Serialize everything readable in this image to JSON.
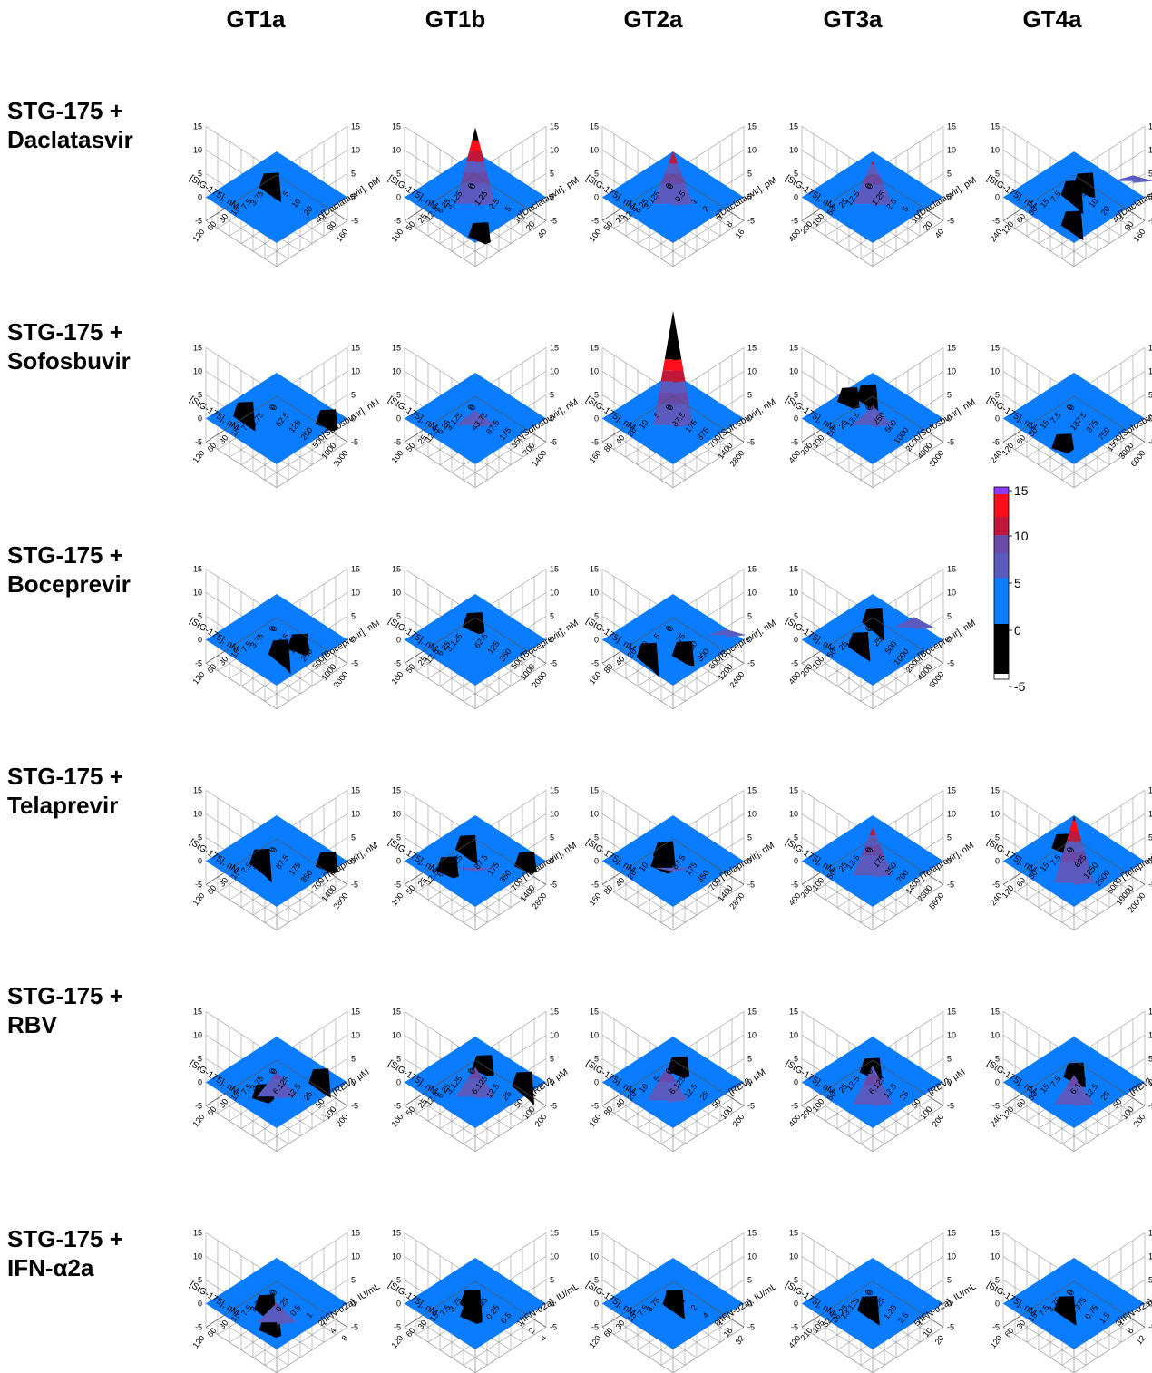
{
  "figure": {
    "column_headers": [
      "GT1a",
      "GT1b",
      "GT2a",
      "GT3a",
      "GT4a"
    ],
    "row_headers": [
      [
        "STG-175 +",
        "Daclatasvir"
      ],
      [
        "STG-175 +",
        "Sofosbuvir"
      ],
      [
        "STG-175 +",
        "Boceprevir"
      ],
      [
        "STG-175 +",
        "Telaprevir"
      ],
      [
        "STG-175 +",
        "RBV"
      ],
      [
        "STG-175 +",
        "IFN-α2a"
      ]
    ]
  },
  "colors": {
    "below_minus5": "#ffffff",
    "minus5_to_0": "#000000",
    "0_to_5": "#0a7cff",
    "5_to_10": "#5b5bbf",
    "10_to_15": "#ff0d1a",
    "above_15": "#8c3cff",
    "band_7": "#6a4aa8",
    "band_12": "#c0183a"
  },
  "chart_data": {
    "type": "surface-3d",
    "zlim": [
      -5,
      15
    ],
    "z_ticks": [
      "15",
      "10",
      "5",
      "0",
      "-5"
    ],
    "colorbar": {
      "levels": [
        "15",
        "10",
        "5",
        "0",
        "-5"
      ],
      "colors": [
        "#8c3cff",
        "#ff0d1a",
        "#0a7cff",
        "#000000",
        "#ffffff"
      ]
    },
    "panels": [
      {
        "row": 0,
        "col": 0,
        "xlabel": "[StG-175], nM",
        "ylabel": "[Daclatasvir], pM",
        "xticks": [
          "120",
          "60",
          "30",
          "15",
          "7.5",
          "3.75",
          "0"
        ],
        "yticks": [
          "0",
          "5",
          "10",
          "20",
          "40",
          "80",
          "160"
        ],
        "peak": {
          "x": 3,
          "y": 3,
          "z": 0
        },
        "holes": [
          {
            "x": 2.2,
            "y": 1.8,
            "z": -4
          }
        ]
      },
      {
        "row": 0,
        "col": 1,
        "xlabel": "[StG-175], nM",
        "ylabel": "[Daclatasvir], pM",
        "xticks": [
          "100",
          "50",
          "25",
          "12.5",
          "6.25",
          "3.125",
          "0"
        ],
        "yticks": [
          "0",
          "1.25",
          "2.5",
          "5",
          "10",
          "20",
          "40"
        ],
        "peak": {
          "x": 4,
          "y": 4,
          "z": 18
        },
        "holes": [
          {
            "x": 5,
            "y": 5.5,
            "z": -2
          }
        ]
      },
      {
        "row": 0,
        "col": 2,
        "xlabel": "[StG-175], nM",
        "ylabel": "[Daclatasvir], pM",
        "xticks": [
          "100",
          "50",
          "25",
          "12.5",
          "6.25",
          "3.125",
          "0"
        ],
        "yticks": [
          "0",
          "0.5",
          "1",
          "2",
          "4",
          "8",
          "16"
        ],
        "peak": {
          "x": 4,
          "y": 4,
          "z": 13
        },
        "holes": []
      },
      {
        "row": 0,
        "col": 3,
        "xlabel": "[StG-175], nM",
        "ylabel": "[Daclatasvir], pM",
        "xticks": [
          "400",
          "200",
          "100",
          "50",
          "25",
          "12.5",
          "0"
        ],
        "yticks": [
          "0",
          "1.25",
          "2.5",
          "5",
          "10",
          "20",
          "40"
        ],
        "peak": {
          "x": 4,
          "y": 4,
          "z": 11
        },
        "holes": []
      },
      {
        "row": 0,
        "col": 4,
        "xlabel": "[StG-175], nM",
        "ylabel": "[Daclatasvir], pM",
        "xticks": [
          "240",
          "120",
          "60",
          "30",
          "15",
          "7.5",
          "0"
        ],
        "yticks": [
          "0",
          "5",
          "10",
          "20",
          "40",
          "80",
          "160"
        ],
        "peak": {
          "x": 0,
          "y": 5,
          "z": 3
        },
        "holes": [
          {
            "x": 4.5,
            "y": 4.5,
            "z": -4
          },
          {
            "x": 2.5,
            "y": 2.5,
            "z": -5
          },
          {
            "x": 1.5,
            "y": 2.5,
            "z": -3
          }
        ]
      },
      {
        "row": 1,
        "col": 0,
        "xlabel": "[StG-175], nM",
        "ylabel": "[Sofosbuvir], nM",
        "xticks": [
          "120",
          "60",
          "30",
          "15",
          "7.5",
          "3.75",
          "0"
        ],
        "yticks": [
          "0",
          "62.5",
          "125",
          "250",
          "500",
          "1000",
          "2000"
        ],
        "peak": {
          "x": 3,
          "y": 3,
          "z": 0
        },
        "holes": [
          {
            "x": 3.8,
            "y": 1.2,
            "z": -4
          },
          {
            "x": 0.8,
            "y": 5.2,
            "z": -2
          }
        ]
      },
      {
        "row": 1,
        "col": 1,
        "xlabel": "[StG-175], nM",
        "ylabel": "[Sofosbuvir], nM",
        "xticks": [
          "100",
          "50",
          "25",
          "12.5",
          "6.25",
          "3.125",
          "0"
        ],
        "yticks": [
          "0",
          "43.75",
          "87.5",
          "175",
          "350",
          "700",
          "1400"
        ],
        "peak": {
          "x": 4,
          "y": 4,
          "z": 5
        },
        "holes": []
      },
      {
        "row": 1,
        "col": 2,
        "xlabel": "[StG-175], nM",
        "ylabel": "[Sofosbuvir], nM",
        "xticks": [
          "160",
          "80",
          "40",
          "20",
          "10",
          "5",
          "0"
        ],
        "yticks": [
          "0",
          "87.5",
          "175",
          "375",
          "700",
          "1400",
          "2800"
        ],
        "peak": {
          "x": 4,
          "y": 4,
          "z": 26
        },
        "holes": []
      },
      {
        "row": 1,
        "col": 3,
        "xlabel": "[StG-175], nM",
        "ylabel": "[Sofosbuvir], nM",
        "xticks": [
          "400",
          "200",
          "100",
          "50",
          "25",
          "12.5",
          "0"
        ],
        "yticks": [
          "0",
          "250",
          "500",
          "1000",
          "2000",
          "4000",
          "8000"
        ],
        "peak": {
          "x": 4,
          "y": 4,
          "z": 6
        },
        "holes": [
          {
            "x": 1.5,
            "y": 1.2,
            "z": -4
          },
          {
            "x": 2.5,
            "y": 0.6,
            "z": -2
          }
        ]
      },
      {
        "row": 1,
        "col": 4,
        "xlabel": "[StG-175], nM",
        "ylabel": "[Sofosbuvir], nM",
        "xticks": [
          "240",
          "120",
          "60",
          "30",
          "15",
          "7.5",
          "0"
        ],
        "yticks": [
          "0",
          "187.5",
          "375",
          "750",
          "1500",
          "3000",
          "6000"
        ],
        "peak": {
          "x": 3,
          "y": 3,
          "z": 0
        },
        "holes": [
          {
            "x": 5,
            "y": 4.2,
            "z": -1
          }
        ]
      },
      {
        "row": 2,
        "col": 0,
        "xlabel": "[StG-175], nM",
        "ylabel": "[Boceprevir], nM",
        "xticks": [
          "120",
          "60",
          "30",
          "15",
          "7.5",
          "3.75",
          "0"
        ],
        "yticks": [
          "0",
          "62.5",
          "125",
          "250",
          "500",
          "1000",
          "2000"
        ],
        "peak": {
          "x": 3,
          "y": 3,
          "z": 0
        },
        "holes": [
          {
            "x": 3.4,
            "y": 3.8,
            "z": -5
          },
          {
            "x": 2.2,
            "y": 4.2,
            "z": -2
          }
        ]
      },
      {
        "row": 2,
        "col": 1,
        "xlabel": "[StG-175], nM",
        "ylabel": "[Boceprevir], nM",
        "xticks": [
          "100",
          "50",
          "25",
          "12.5",
          "6.25",
          "3.125",
          "0"
        ],
        "yticks": [
          "0",
          "62.5",
          "125",
          "250",
          "500",
          "1000",
          "2000"
        ],
        "peak": {
          "x": 3,
          "y": 3,
          "z": 0
        },
        "holes": [
          {
            "x": 1.8,
            "y": 1.8,
            "z": -2
          }
        ]
      },
      {
        "row": 2,
        "col": 2,
        "xlabel": "[StG-175], nM",
        "ylabel": "[Boceprevir], nM",
        "xticks": [
          "160",
          "80",
          "40",
          "20",
          "10",
          "5",
          "0"
        ],
        "yticks": [
          "0",
          "75",
          "150",
          "300",
          "600",
          "1200",
          "2400"
        ],
        "peak": {
          "x": 1,
          "y": 5.5,
          "z": 3
        },
        "holes": [
          {
            "x": 4.8,
            "y": 2.8,
            "z": -5
          },
          {
            "x": 3.2,
            "y": 4.2,
            "z": -3
          }
        ]
      },
      {
        "row": 2,
        "col": 3,
        "xlabel": "[StG-175], nM",
        "ylabel": "[Boceprevir], nM",
        "xticks": [
          "400",
          "200",
          "100",
          "50",
          "25",
          "12.5",
          "0"
        ],
        "yticks": [
          "0",
          "250",
          "500",
          "1000",
          "2000",
          "4000",
          "8000"
        ],
        "peak": {
          "x": 1,
          "y": 4.5,
          "z": 4
        },
        "holes": [
          {
            "x": 3.6,
            "y": 2.6,
            "z": -4
          },
          {
            "x": 1.4,
            "y": 1.6,
            "z": -5
          }
        ]
      },
      {
        "row": 3,
        "col": 0,
        "xlabel": "[StG-175], nM",
        "ylabel": "[Telaprevir], nM",
        "xticks": [
          "120",
          "60",
          "30",
          "15",
          "7.5",
          "3.75",
          "0"
        ],
        "yticks": [
          "0",
          "87.5",
          "175",
          "350",
          "700",
          "1400",
          "2800"
        ],
        "peak": {
          "x": 3,
          "y": 3,
          "z": 0
        },
        "holes": [
          {
            "x": 3.4,
            "y": 2.2,
            "z": -5
          },
          {
            "x": 0.8,
            "y": 5.2,
            "z": -2
          }
        ]
      },
      {
        "row": 3,
        "col": 1,
        "xlabel": "[StG-175], nM",
        "ylabel": "[Telaprevir], nM",
        "xticks": [
          "100",
          "50",
          "25",
          "12.5",
          "6.25",
          "3.125",
          "0"
        ],
        "yticks": [
          "0",
          "87.5",
          "175",
          "350",
          "700",
          "1400",
          "2800"
        ],
        "peak": {
          "x": 4,
          "y": 4,
          "z": 1
        },
        "holes": [
          {
            "x": 2.2,
            "y": 1.6,
            "z": -4
          },
          {
            "x": 4.4,
            "y": 2.2,
            "z": -2
          },
          {
            "x": 0.8,
            "y": 5.2,
            "z": -2
          }
        ]
      },
      {
        "row": 3,
        "col": 2,
        "xlabel": "[StG-175], nM",
        "ylabel": "[Telaprevir], nM",
        "xticks": [
          "160",
          "80",
          "40",
          "20",
          "10",
          "5",
          "0"
        ],
        "yticks": [
          "0",
          "87.5",
          "175",
          "350",
          "700",
          "1400",
          "2800"
        ],
        "peak": {
          "x": 4,
          "y": 4,
          "z": 1
        },
        "holes": [
          {
            "x": 2.6,
            "y": 2.0,
            "z": -3
          },
          {
            "x": 3.4,
            "y": 2.6,
            "z": -2
          }
        ]
      },
      {
        "row": 3,
        "col": 3,
        "xlabel": "[StG-175], nM",
        "ylabel": "[Telaprevir], nM",
        "xticks": [
          "400",
          "200",
          "100",
          "50",
          "25",
          "12.5",
          "0"
        ],
        "yticks": [
          "0",
          "175",
          "350",
          "700",
          "1400",
          "2800",
          "5600"
        ],
        "peak": {
          "x": 4.5,
          "y": 4.5,
          "z": 12
        },
        "holes": []
      },
      {
        "row": 3,
        "col": 4,
        "xlabel": "[StG-175], nM",
        "ylabel": "[Telaprevir], nM",
        "xticks": [
          "240",
          "120",
          "60",
          "30",
          "15",
          "7.5",
          "0"
        ],
        "yticks": [
          "0",
          "625",
          "1250",
          "2500",
          "5000",
          "10000",
          "20000"
        ],
        "peak": {
          "x": 5,
          "y": 5,
          "z": 16
        },
        "holes": [
          {
            "x": 2.2,
            "y": 1.4,
            "z": -2
          }
        ]
      },
      {
        "row": 4,
        "col": 0,
        "xlabel": "[StG-175], nM",
        "ylabel": "[RBV], μM",
        "xticks": [
          "120",
          "60",
          "30",
          "15",
          "7.5",
          "3.75",
          "0"
        ],
        "yticks": [
          "0",
          "6.125",
          "12.5",
          "25",
          "50",
          "100",
          "200"
        ],
        "peak": {
          "x": 4.5,
          "y": 4.5,
          "z": 7
        },
        "holes": [
          {
            "x": 0.8,
            "y": 4.6,
            "z": -4
          },
          {
            "x": 4.2,
            "y": 3.2,
            "z": -1
          }
        ]
      },
      {
        "row": 4,
        "col": 1,
        "xlabel": "[StG-175], nM",
        "ylabel": "[RBV], μM",
        "xticks": [
          "100",
          "50",
          "25",
          "12.5",
          "6.25",
          "3.125",
          "0"
        ],
        "yticks": [
          "0",
          "6.125",
          "12.5",
          "25",
          "50",
          "100",
          "200"
        ],
        "peak": {
          "x": 4.5,
          "y": 4.5,
          "z": 8
        },
        "holes": [
          {
            "x": 1.4,
            "y": 2.2,
            "z": -2
          },
          {
            "x": 0.8,
            "y": 5.0,
            "z": -5
          }
        ]
      },
      {
        "row": 4,
        "col": 2,
        "xlabel": "[StG-175], nM",
        "ylabel": "[RBV], μM",
        "xticks": [
          "160",
          "80",
          "40",
          "20",
          "10",
          "5",
          "0"
        ],
        "yticks": [
          "0",
          "6.125",
          "12.5",
          "25",
          "50",
          "100",
          "200"
        ],
        "peak": {
          "x": 5,
          "y": 4.5,
          "z": 9
        },
        "holes": [
          {
            "x": 1.6,
            "y": 2.2,
            "z": -2
          }
        ]
      },
      {
        "row": 4,
        "col": 3,
        "xlabel": "[StG-175], nM",
        "ylabel": "[RBV], μM",
        "xticks": [
          "400",
          "200",
          "100",
          "50",
          "25",
          "12.5",
          "0"
        ],
        "yticks": [
          "0",
          "6.125",
          "12.5",
          "25",
          "50",
          "100",
          "200"
        ],
        "peak": {
          "x": 5,
          "y": 5,
          "z": 10
        },
        "holes": [
          {
            "x": 2.0,
            "y": 2.0,
            "z": -2
          }
        ]
      },
      {
        "row": 4,
        "col": 4,
        "xlabel": "[StG-175], nM",
        "ylabel": "[RBV], μM",
        "xticks": [
          "240",
          "120",
          "60",
          "30",
          "15",
          "7.5",
          "0"
        ],
        "yticks": [
          "0",
          "6.125",
          "12.5",
          "25",
          "50",
          "100",
          "200"
        ],
        "peak": {
          "x": 5,
          "y": 5,
          "z": 8
        },
        "holes": [
          {
            "x": 2.2,
            "y": 2.4,
            "z": -3
          }
        ]
      },
      {
        "row": 5,
        "col": 0,
        "xlabel": "[StG-175], nM",
        "ylabel": "[IFN-α2a], IU/mL",
        "xticks": [
          "120",
          "60",
          "30",
          "15",
          "7.5",
          "3.75",
          "0"
        ],
        "yticks": [
          "0",
          "0.25",
          "0.5",
          "1",
          "2",
          "4",
          "8"
        ],
        "peak": {
          "x": 4.8,
          "y": 4.8,
          "z": 6
        },
        "holes": [
          {
            "x": 3.4,
            "y": 2.6,
            "z": -5
          },
          {
            "x": 4.6,
            "y": 4.2,
            "z": -2
          }
        ]
      },
      {
        "row": 5,
        "col": 1,
        "xlabel": "[StG-175], nM",
        "ylabel": "[IFN-α2a], IU/mL",
        "xticks": [
          "120",
          "60",
          "30",
          "15",
          "7.5",
          "3.75",
          "0"
        ],
        "yticks": [
          "0",
          "0.125",
          "0.25",
          "0.5",
          "1",
          "2",
          "4"
        ],
        "peak": {
          "x": 3,
          "y": 3,
          "z": 0
        },
        "holes": [
          {
            "x": 2.8,
            "y": 2.6,
            "z": -4
          },
          {
            "x": 3.6,
            "y": 3.4,
            "z": -2
          }
        ]
      },
      {
        "row": 5,
        "col": 2,
        "xlabel": "[StG-175], nM",
        "ylabel": "[IFN-α2a], IU/mL",
        "xticks": [
          "120",
          "60",
          "30",
          "15",
          "7.5",
          "3.75",
          "0"
        ],
        "yticks": [
          "0",
          "1",
          "2",
          "4",
          "8",
          "16",
          "32"
        ],
        "peak": {
          "x": 3,
          "y": 3,
          "z": 0
        },
        "holes": [
          {
            "x": 2.6,
            "y": 2.8,
            "z": -4
          }
        ]
      },
      {
        "row": 5,
        "col": 3,
        "xlabel": "[StG-175], nM",
        "ylabel": "[IFN-α2a], IU/mL",
        "xticks": [
          "420",
          "210",
          "105",
          "52.5",
          "26.25",
          "13.125",
          "0"
        ],
        "yticks": [
          "0",
          "0.625",
          "1.25",
          "2.5",
          "5",
          "10",
          "20"
        ],
        "peak": {
          "x": 3,
          "y": 3,
          "z": 0
        },
        "holes": [
          {
            "x": 3.2,
            "y": 3.0,
            "z": -4
          }
        ]
      },
      {
        "row": 5,
        "col": 4,
        "xlabel": "[StG-175], nM",
        "ylabel": "[IFN-α2a], IU/mL",
        "xticks": [
          "120",
          "60",
          "30",
          "15",
          "7.5",
          "3.75",
          "0"
        ],
        "yticks": [
          "0",
          "0.375",
          "0.75",
          "1.5",
          "3",
          "6",
          "12"
        ],
        "peak": {
          "x": 3,
          "y": 3,
          "z": 0
        },
        "holes": [
          {
            "x": 3.4,
            "y": 2.8,
            "z": -4
          }
        ]
      }
    ]
  }
}
